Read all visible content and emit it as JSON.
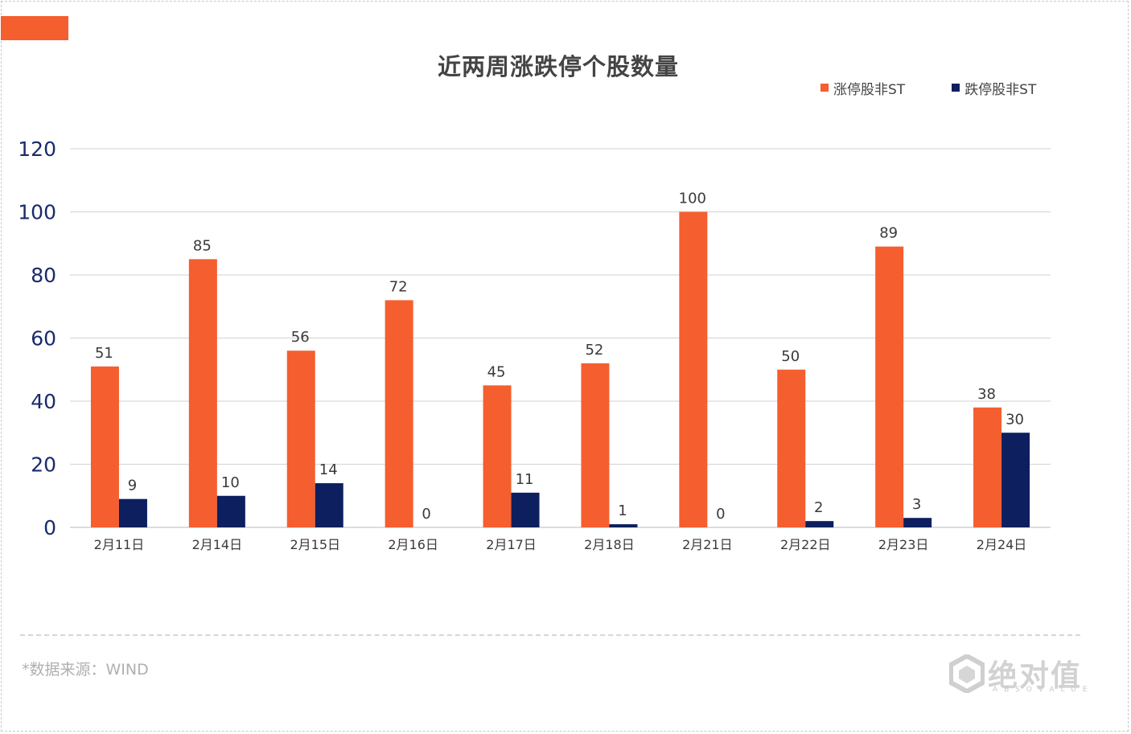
{
  "chart_data": {
    "type": "bar",
    "title": "近两周涨跌停个股数量",
    "categories": [
      "2月11日",
      "2月14日",
      "2月15日",
      "2月16日",
      "2月17日",
      "2月18日",
      "2月21日",
      "2月22日",
      "2月23日",
      "2月24日"
    ],
    "series": [
      {
        "name": "涨停股非ST",
        "color": "#f55e2f",
        "values": [
          51,
          85,
          56,
          72,
          45,
          52,
          100,
          50,
          89,
          38
        ]
      },
      {
        "name": "跌停股非ST",
        "color": "#0d1f5e",
        "values": [
          9,
          10,
          14,
          0,
          11,
          1,
          0,
          2,
          3,
          30
        ]
      }
    ],
    "yticks": [
      0,
      20,
      40,
      60,
      80,
      100,
      120
    ],
    "ylim": [
      0,
      120
    ],
    "grid": true,
    "legend_position": "top-right",
    "data_labels": true
  },
  "source_note": "*数据来源：WIND",
  "logo": {
    "text": "绝对值",
    "subtext": "ABSOVALUE"
  },
  "colors": {
    "accent": "#f55e2f",
    "up": "#f55e2f",
    "down": "#0d1f5e",
    "axis_text": "#1a2a6c"
  }
}
